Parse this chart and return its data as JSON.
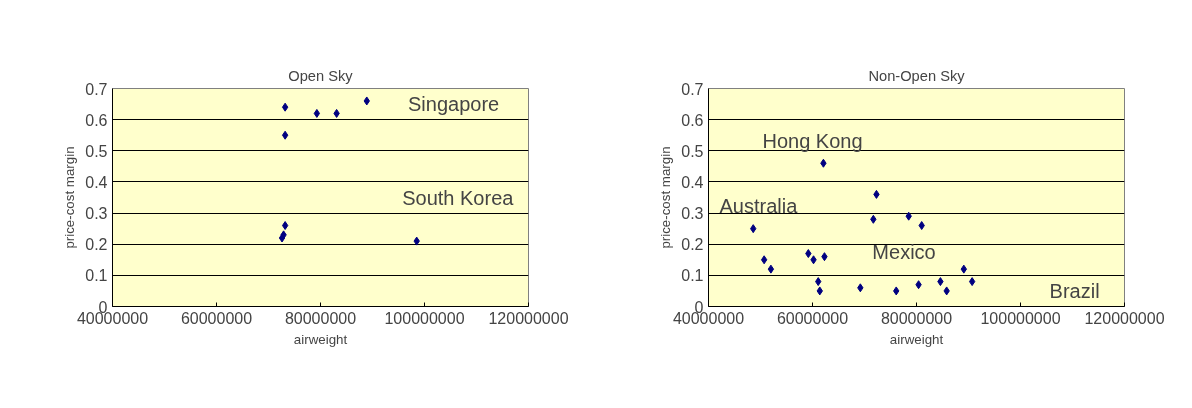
{
  "chart_data": [
    {
      "type": "scatter",
      "title": "Open Sky",
      "xlabel": "airweight",
      "ylabel": "price-cost margin",
      "marker": "diamond",
      "grid": "y",
      "xlim": [
        40000000,
        120000000
      ],
      "xticks": [
        40000000,
        60000000,
        80000000,
        100000000,
        120000000
      ],
      "ylim": [
        0,
        0.7
      ],
      "yticks": [
        0,
        0.1,
        0.2,
        0.3,
        0.4,
        0.5,
        0.6,
        0.7
      ],
      "series": [
        {
          "color": "#000080",
          "x": [
            73200000,
            73200000,
            79300000,
            83100000,
            88900000,
            73200000,
            72900000,
            72600000,
            98500000
          ],
          "values": [
            0.64,
            0.55,
            0.62,
            0.62,
            0.66,
            0.26,
            0.23,
            0.22,
            0.21
          ]
        }
      ],
      "annotations": [
        "Singapore",
        "South Korea"
      ]
    },
    {
      "type": "scatter",
      "title": "Non-Open Sky",
      "xlabel": "airweight",
      "ylabel": "price-cost margin",
      "marker": "diamond",
      "grid": "y",
      "xlim": [
        40000000,
        120000000
      ],
      "xticks": [
        40000000,
        60000000,
        80000000,
        100000000,
        120000000
      ],
      "ylim": [
        0,
        0.7
      ],
      "yticks": [
        0,
        0.1,
        0.2,
        0.3,
        0.4,
        0.5,
        0.6,
        0.7
      ],
      "series": [
        {
          "color": "#000080",
          "x": [
            62100000,
            72300000,
            71700000,
            78500000,
            81000000,
            48600000,
            50700000,
            52000000,
            59200000,
            60200000,
            62300000,
            61100000,
            61400000,
            69200000,
            76100000,
            80400000,
            84600000,
            85800000,
            89100000,
            90700000
          ],
          "values": [
            0.46,
            0.36,
            0.28,
            0.29,
            0.26,
            0.25,
            0.15,
            0.12,
            0.17,
            0.15,
            0.16,
            0.08,
            0.05,
            0.06,
            0.05,
            0.07,
            0.08,
            0.05,
            0.12,
            0.08
          ]
        }
      ],
      "annotations": [
        "Hong Kong",
        "Australia",
        "Mexico",
        "Brazil"
      ]
    }
  ]
}
